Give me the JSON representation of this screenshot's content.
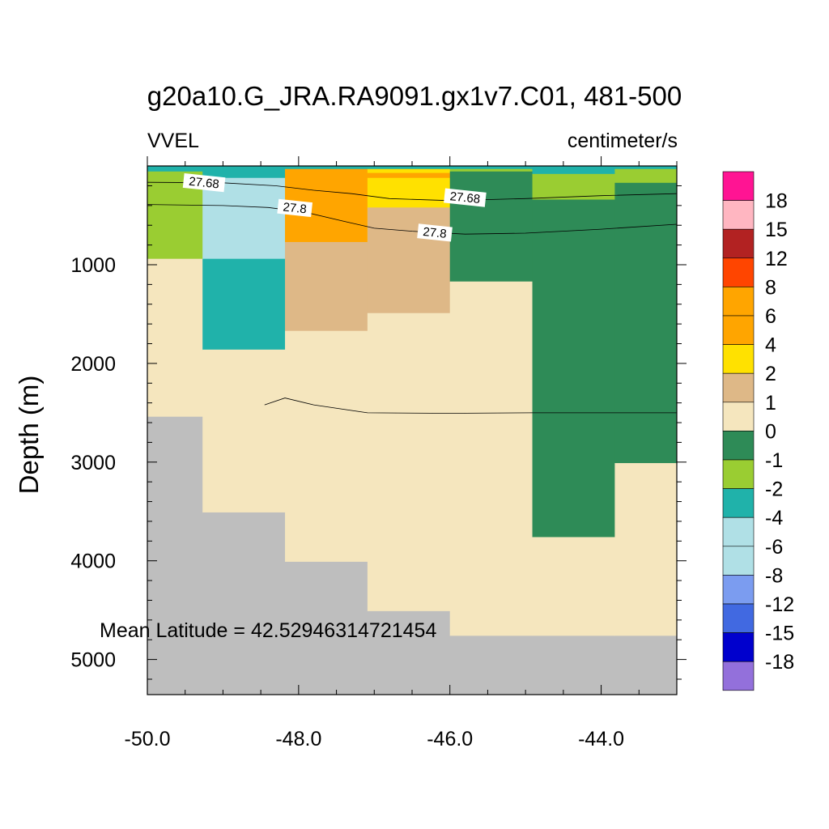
{
  "title": "g20a10.G_JRA.RA9091.gx1v7.C01, 481-500",
  "left_label": "VVEL",
  "right_label": "centimeter/s",
  "annotation": "Mean Latitude = 42.52946314721454",
  "chart_data": {
    "type": "heatmap",
    "title": "g20a10.G_JRA.RA9091.gx1v7.C01, 481-500",
    "variable": "VVEL",
    "units": "centimeter/s",
    "xlabel": "",
    "ylabel": "Depth (m)",
    "xlim": [
      -50.0,
      -43.0
    ],
    "ylim": [
      0,
      5400
    ],
    "y_inverted": true,
    "x_ticks": [
      -50.0,
      -48.0,
      -46.0,
      -44.0
    ],
    "x_tick_labels": [
      "-50.0",
      "-48.0",
      "-46.0",
      "-44.0"
    ],
    "y_ticks": [
      1000,
      2000,
      3000,
      4000,
      5000
    ],
    "y_tick_labels": [
      "1000",
      "2000",
      "3000",
      "4000",
      "5000"
    ],
    "missing_color": "#bebebe",
    "colorbar": {
      "labels": [
        "18",
        "15",
        "12",
        "8",
        "6",
        "4",
        "2",
        "1",
        "0",
        "-1",
        "-2",
        "-4",
        "-6",
        "-8",
        "-12",
        "-15",
        "-18"
      ],
      "colors": [
        "#ff1493",
        "#ffb6c1",
        "#b22222",
        "#ff4500",
        "#ffa500",
        "#ffa500",
        "#ffe100",
        "#deb887",
        "#f5e6be",
        "#2e8b57",
        "#9acd32",
        "#20b2aa",
        "#b0e0e6",
        "#b0e0e6",
        "#7b9cf0",
        "#4169e1",
        "#0000cd",
        "#9370db"
      ]
    },
    "cells": [
      {
        "x": [
          -50.0,
          -49.27
        ],
        "y": [
          0,
          55
        ],
        "color": "#20b2aa"
      },
      {
        "x": [
          -50.0,
          -49.27
        ],
        "y": [
          55,
          940
        ],
        "color": "#9acd32"
      },
      {
        "x": [
          -50.0,
          -49.27
        ],
        "y": [
          940,
          2540
        ],
        "color": "#f5e6be"
      },
      {
        "x": [
          -50.0,
          -49.27
        ],
        "y": [
          2540,
          5400
        ],
        "color": "#bebebe"
      },
      {
        "x": [
          -49.27,
          -48.18
        ],
        "y": [
          0,
          120
        ],
        "color": "#20b2aa"
      },
      {
        "x": [
          -49.27,
          -48.18
        ],
        "y": [
          120,
          940
        ],
        "color": "#b0e0e6"
      },
      {
        "x": [
          -49.27,
          -48.18
        ],
        "y": [
          940,
          1860
        ],
        "color": "#20b2aa"
      },
      {
        "x": [
          -49.27,
          -48.18
        ],
        "y": [
          1860,
          3510
        ],
        "color": "#f5e6be"
      },
      {
        "x": [
          -49.27,
          -48.18
        ],
        "y": [
          3510,
          5400
        ],
        "color": "#bebebe"
      },
      {
        "x": [
          -48.18,
          -47.09
        ],
        "y": [
          0,
          30
        ],
        "color": "#20b2aa"
      },
      {
        "x": [
          -48.18,
          -47.09
        ],
        "y": [
          30,
          770
        ],
        "color": "#ffa500"
      },
      {
        "x": [
          -48.18,
          -47.09
        ],
        "y": [
          770,
          1670
        ],
        "color": "#deb887"
      },
      {
        "x": [
          -48.18,
          -47.09
        ],
        "y": [
          1670,
          4010
        ],
        "color": "#f5e6be"
      },
      {
        "x": [
          -48.18,
          -47.09
        ],
        "y": [
          4010,
          5400
        ],
        "color": "#bebebe"
      },
      {
        "x": [
          -47.09,
          -46.0
        ],
        "y": [
          0,
          30
        ],
        "color": "#20b2aa"
      },
      {
        "x": [
          -47.09,
          -46.0
        ],
        "y": [
          30,
          70
        ],
        "color": "#ffe100"
      },
      {
        "x": [
          -47.09,
          -46.0
        ],
        "y": [
          70,
          120
        ],
        "color": "#ffa500"
      },
      {
        "x": [
          -47.09,
          -46.0
        ],
        "y": [
          120,
          420
        ],
        "color": "#ffe100"
      },
      {
        "x": [
          -47.09,
          -46.0
        ],
        "y": [
          420,
          770
        ],
        "color": "#ffe100"
      },
      {
        "x": [
          -47.09,
          -46.0
        ],
        "y": [
          420,
          1490
        ],
        "color": "#deb887"
      },
      {
        "x": [
          -47.09,
          -46.0
        ],
        "y": [
          1490,
          4510
        ],
        "color": "#f5e6be"
      },
      {
        "x": [
          -47.09,
          -46.0
        ],
        "y": [
          4510,
          5400
        ],
        "color": "#bebebe"
      },
      {
        "x": [
          -48.18,
          -47.09
        ],
        "y": [
          770,
          770
        ],
        "color": "#ffe100"
      },
      {
        "x": [
          -46.0,
          -44.91
        ],
        "y": [
          0,
          30
        ],
        "color": "#20b2aa"
      },
      {
        "x": [
          -46.0,
          -44.91
        ],
        "y": [
          30,
          55
        ],
        "color": "#9acd32"
      },
      {
        "x": [
          -46.0,
          -44.91
        ],
        "y": [
          55,
          1170
        ],
        "color": "#2e8b57"
      },
      {
        "x": [
          -46.0,
          -44.91
        ],
        "y": [
          1170,
          4760
        ],
        "color": "#f5e6be"
      },
      {
        "x": [
          -46.0,
          -44.91
        ],
        "y": [
          4760,
          5400
        ],
        "color": "#bebebe"
      },
      {
        "x": [
          -44.91,
          -43.82
        ],
        "y": [
          0,
          30
        ],
        "color": "#20b2aa"
      },
      {
        "x": [
          -44.91,
          -43.82
        ],
        "y": [
          30,
          80
        ],
        "color": "#20b2aa"
      },
      {
        "x": [
          -44.91,
          -43.82
        ],
        "y": [
          80,
          340
        ],
        "color": "#9acd32"
      },
      {
        "x": [
          -44.91,
          -43.82
        ],
        "y": [
          340,
          3760
        ],
        "color": "#2e8b57"
      },
      {
        "x": [
          -44.91,
          -43.82
        ],
        "y": [
          3760,
          4760
        ],
        "color": "#f5e6be"
      },
      {
        "x": [
          -44.91,
          -43.82
        ],
        "y": [
          4760,
          5400
        ],
        "color": "#bebebe"
      },
      {
        "x": [
          -43.82,
          -43.0
        ],
        "y": [
          0,
          30
        ],
        "color": "#20b2aa"
      },
      {
        "x": [
          -43.82,
          -43.0
        ],
        "y": [
          30,
          170
        ],
        "color": "#9acd32"
      },
      {
        "x": [
          -43.82,
          -43.0
        ],
        "y": [
          170,
          3010
        ],
        "color": "#2e8b57"
      },
      {
        "x": [
          -43.82,
          -43.0
        ],
        "y": [
          3010,
          4760
        ],
        "color": "#f5e6be"
      },
      {
        "x": [
          -43.82,
          -43.0
        ],
        "y": [
          4760,
          5400
        ],
        "color": "#bebebe"
      }
    ],
    "contours": [
      {
        "level": "27.68",
        "points": [
          [
            -50.0,
            165
          ],
          [
            -49.0,
            170
          ],
          [
            -48.3,
            200
          ],
          [
            -47.8,
            245
          ],
          [
            -47.3,
            280
          ],
          [
            -46.8,
            330
          ],
          [
            -46.0,
            350
          ],
          [
            -45.0,
            330
          ],
          [
            -44.0,
            300
          ],
          [
            -43.0,
            280
          ]
        ],
        "labels": [
          [
            -49.25,
            168
          ],
          [
            -45.8,
            320
          ]
        ]
      },
      {
        "level": "27.8",
        "points": [
          [
            -50.0,
            390
          ],
          [
            -49.0,
            400
          ],
          [
            -48.4,
            420
          ],
          [
            -47.9,
            470
          ],
          [
            -47.4,
            560
          ],
          [
            -47.0,
            630
          ],
          [
            -46.5,
            660
          ],
          [
            -45.8,
            690
          ],
          [
            -45.0,
            680
          ],
          [
            -44.0,
            640
          ],
          [
            -43.0,
            590
          ]
        ],
        "labels": [
          [
            -48.05,
            425
          ],
          [
            -46.2,
            675
          ]
        ]
      },
      {
        "level": "",
        "points": [
          [
            -48.45,
            2420
          ],
          [
            -48.18,
            2350
          ],
          [
            -47.8,
            2420
          ],
          [
            -47.09,
            2500
          ],
          [
            -46.0,
            2505
          ],
          [
            -44.91,
            2500
          ],
          [
            -43.82,
            2500
          ],
          [
            -43.0,
            2500
          ]
        ],
        "labels": []
      }
    ]
  }
}
